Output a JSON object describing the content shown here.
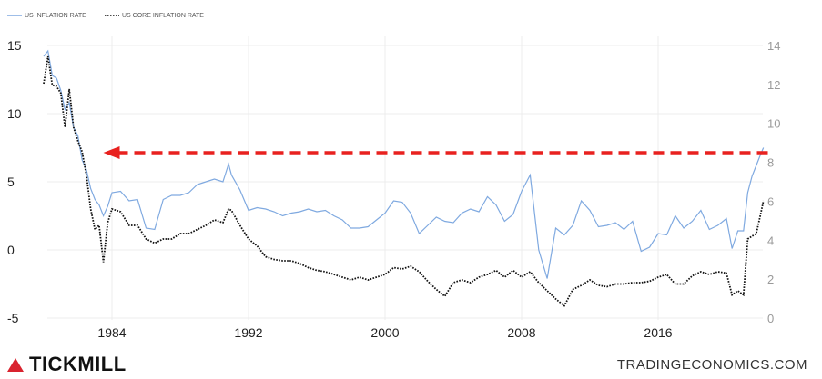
{
  "brand": {
    "name": "TICKMILL",
    "accent": "#d9232f"
  },
  "source": "TRADINGECONOMICS.COM",
  "chart_data": {
    "type": "line",
    "legend": [
      "US INFLATION RATE",
      "US CORE INFLATION RATE"
    ],
    "legend_placement": "top-left",
    "grid": true,
    "x": [
      1980.0,
      1980.25,
      1980.5,
      1980.75,
      1981.0,
      1981.25,
      1981.5,
      1981.75,
      1982.0,
      1982.25,
      1982.5,
      1982.75,
      1983.0,
      1983.25,
      1983.5,
      1983.75,
      1984.0,
      1984.5,
      1985.0,
      1985.5,
      1986.0,
      1986.5,
      1987.0,
      1987.5,
      1988.0,
      1988.5,
      1989.0,
      1989.5,
      1990.0,
      1990.5,
      1990.83,
      1991.0,
      1991.5,
      1992.0,
      1992.5,
      1993.0,
      1993.5,
      1994.0,
      1994.5,
      1995.0,
      1995.5,
      1996.0,
      1996.5,
      1997.0,
      1997.5,
      1998.0,
      1998.5,
      1999.0,
      1999.5,
      2000.0,
      2000.5,
      2001.0,
      2001.5,
      2002.0,
      2002.5,
      2003.0,
      2003.5,
      2004.0,
      2004.5,
      2005.0,
      2005.5,
      2006.0,
      2006.5,
      2007.0,
      2007.5,
      2008.0,
      2008.5,
      2009.0,
      2009.5,
      2010.0,
      2010.5,
      2011.0,
      2011.5,
      2012.0,
      2012.5,
      2013.0,
      2013.5,
      2014.0,
      2014.5,
      2015.0,
      2015.5,
      2016.0,
      2016.5,
      2017.0,
      2017.5,
      2018.0,
      2018.5,
      2019.0,
      2019.5,
      2020.0,
      2020.33,
      2020.67,
      2021.0,
      2021.25,
      2021.5,
      2021.75,
      2022.0,
      2022.17
    ],
    "series": [
      {
        "name": "US INFLATION RATE",
        "color": "#7fa9e0",
        "axis": "left",
        "values": [
          14.2,
          14.6,
          12.8,
          12.6,
          11.7,
          10.3,
          10.8,
          9.0,
          8.4,
          6.6,
          5.9,
          4.5,
          3.7,
          3.3,
          2.5,
          3.2,
          4.2,
          4.3,
          3.6,
          3.7,
          1.6,
          1.5,
          3.7,
          4.0,
          4.0,
          4.2,
          4.8,
          5.0,
          5.2,
          5.0,
          6.3,
          5.5,
          4.4,
          2.9,
          3.1,
          3.0,
          2.8,
          2.5,
          2.7,
          2.8,
          3.0,
          2.8,
          2.9,
          2.5,
          2.2,
          1.6,
          1.6,
          1.7,
          2.2,
          2.7,
          3.6,
          3.5,
          2.7,
          1.2,
          1.8,
          2.4,
          2.1,
          2.0,
          2.7,
          3.0,
          2.8,
          3.9,
          3.3,
          2.1,
          2.6,
          4.3,
          5.5,
          0.0,
          -2.1,
          1.6,
          1.1,
          1.8,
          3.6,
          2.9,
          1.7,
          1.8,
          2.0,
          1.5,
          2.1,
          -0.1,
          0.2,
          1.2,
          1.1,
          2.5,
          1.6,
          2.1,
          2.9,
          1.5,
          1.8,
          2.3,
          0.1,
          1.4,
          1.4,
          4.2,
          5.4,
          6.2,
          7.0,
          7.5
        ]
      },
      {
        "name": "US CORE INFLATION RATE",
        "color": "#111111",
        "axis": "left",
        "values": [
          12.2,
          14.2,
          12.1,
          12.0,
          11.5,
          9.0,
          11.8,
          9.0,
          8.0,
          7.2,
          5.5,
          3.0,
          1.5,
          1.8,
          -0.9,
          2.0,
          3.0,
          2.8,
          1.8,
          1.8,
          0.8,
          0.5,
          0.8,
          0.8,
          1.2,
          1.2,
          1.5,
          1.8,
          2.2,
          2.0,
          3.0,
          2.9,
          1.8,
          0.8,
          0.3,
          -0.5,
          -0.7,
          -0.8,
          -0.8,
          -1.0,
          -1.3,
          -1.5,
          -1.6,
          -1.8,
          -2.0,
          -2.2,
          -2.0,
          -2.2,
          -2.0,
          -1.8,
          -1.3,
          -1.4,
          -1.2,
          -1.6,
          -2.3,
          -2.9,
          -3.4,
          -2.4,
          -2.2,
          -2.4,
          -2.0,
          -1.8,
          -1.5,
          -2.0,
          -1.5,
          -2.0,
          -1.6,
          -2.4,
          -3.0,
          -3.6,
          -4.1,
          -2.9,
          -2.6,
          -2.2,
          -2.6,
          -2.7,
          -2.5,
          -2.5,
          -2.4,
          -2.4,
          -2.3,
          -2.0,
          -1.8,
          -2.5,
          -2.5,
          -1.9,
          -1.6,
          -1.8,
          -1.6,
          -1.7,
          -3.3,
          -3.0,
          -3.3,
          0.8,
          1.0,
          1.2,
          2.6,
          3.6
        ]
      }
    ],
    "y_left": {
      "ticks": [
        15,
        10,
        5,
        0,
        -5
      ],
      "range": [
        -5,
        15
      ]
    },
    "y_right": {
      "ticks": [
        14,
        12,
        10,
        8,
        6,
        4,
        2,
        0
      ],
      "range": [
        0,
        14
      ]
    },
    "x_ticks": [
      "1984",
      "1992",
      "2000",
      "2008",
      "2016"
    ],
    "annotation": {
      "type": "dashed-arrow",
      "color": "#e8211f",
      "direction": "left",
      "from_x": 2022.0,
      "to_x": 1983.6,
      "y_value": 7.2
    }
  }
}
